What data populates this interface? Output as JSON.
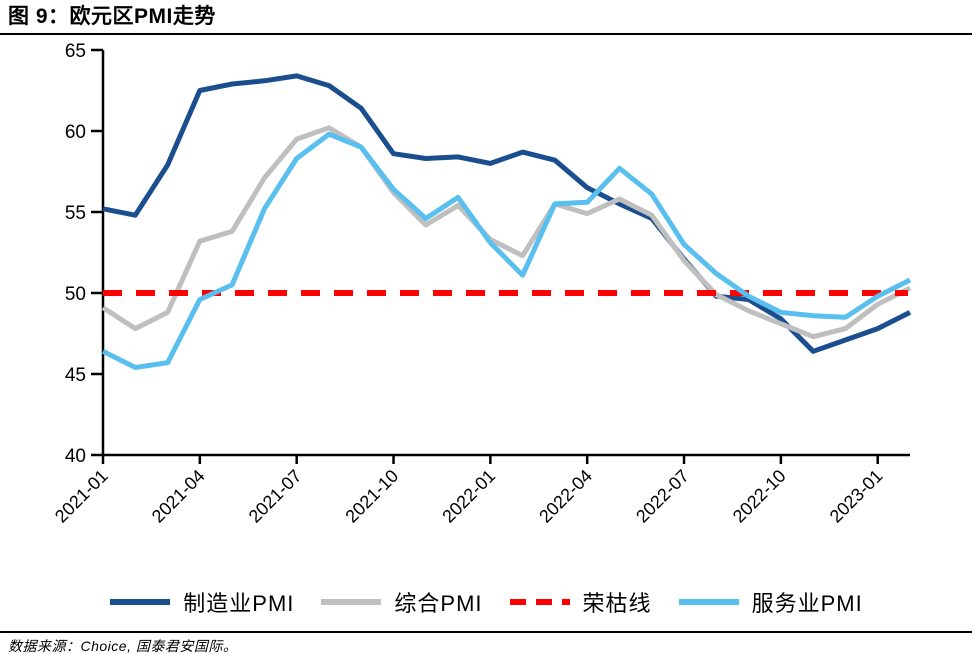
{
  "header": {
    "title": "图 9：欧元区PMI走势"
  },
  "footer": {
    "source": "数据来源：Choice, 国泰君安国际。"
  },
  "colors": {
    "axis": "#000000",
    "background": "#ffffff"
  },
  "chart_data": {
    "type": "line",
    "title": "欧元区PMI走势",
    "xlabel": "",
    "ylabel": "",
    "ylim": [
      40,
      65
    ],
    "yticks": [
      40,
      45,
      50,
      55,
      60,
      65
    ],
    "grid": false,
    "legend_position": "bottom",
    "x": [
      "2021-01",
      "2021-02",
      "2021-03",
      "2021-04",
      "2021-05",
      "2021-06",
      "2021-07",
      "2021-08",
      "2021-09",
      "2021-10",
      "2021-11",
      "2021-12",
      "2022-01",
      "2022-02",
      "2022-03",
      "2022-04",
      "2022-05",
      "2022-06",
      "2022-07",
      "2022-08",
      "2022-09",
      "2022-10",
      "2022-11",
      "2022-12",
      "2023-01",
      "2023-02"
    ],
    "xtick_labels": [
      "2021-01",
      "2021-04",
      "2021-07",
      "2021-10",
      "2022-01",
      "2022-04",
      "2022-07",
      "2022-10",
      "2023-01"
    ],
    "xtick_indices": [
      0,
      3,
      6,
      9,
      12,
      15,
      18,
      21,
      24
    ],
    "series": [
      {
        "name": "制造业PMI",
        "color": "#1B4E8F",
        "dashed": false,
        "values": [
          55.2,
          54.8,
          57.9,
          62.5,
          62.9,
          63.1,
          63.4,
          62.8,
          61.4,
          58.6,
          58.3,
          58.4,
          58.0,
          58.7,
          58.2,
          56.5,
          55.5,
          54.6,
          52.1,
          49.8,
          49.6,
          48.4,
          46.4,
          47.1,
          47.8,
          48.8
        ]
      },
      {
        "name": "综合PMI",
        "color": "#BFBFBF",
        "dashed": false,
        "values": [
          49.1,
          47.8,
          48.8,
          53.2,
          53.8,
          57.1,
          59.5,
          60.2,
          59.0,
          56.2,
          54.2,
          55.4,
          53.3,
          52.3,
          55.5,
          54.9,
          55.8,
          54.8,
          52.0,
          49.9,
          48.9,
          48.1,
          47.3,
          47.8,
          49.3,
          50.3
        ]
      },
      {
        "name": "荣枯线",
        "color": "#FF0000",
        "dashed": true,
        "type": "hline",
        "value": 50
      },
      {
        "name": "服务业PMI",
        "color": "#58BFEE",
        "dashed": false,
        "values": [
          46.4,
          45.4,
          45.7,
          49.6,
          50.5,
          55.2,
          58.3,
          59.8,
          59.0,
          56.4,
          54.6,
          55.9,
          53.1,
          51.1,
          55.5,
          55.6,
          57.7,
          56.1,
          53.0,
          51.2,
          49.8,
          48.8,
          48.6,
          48.5,
          49.8,
          50.8
        ]
      }
    ]
  }
}
